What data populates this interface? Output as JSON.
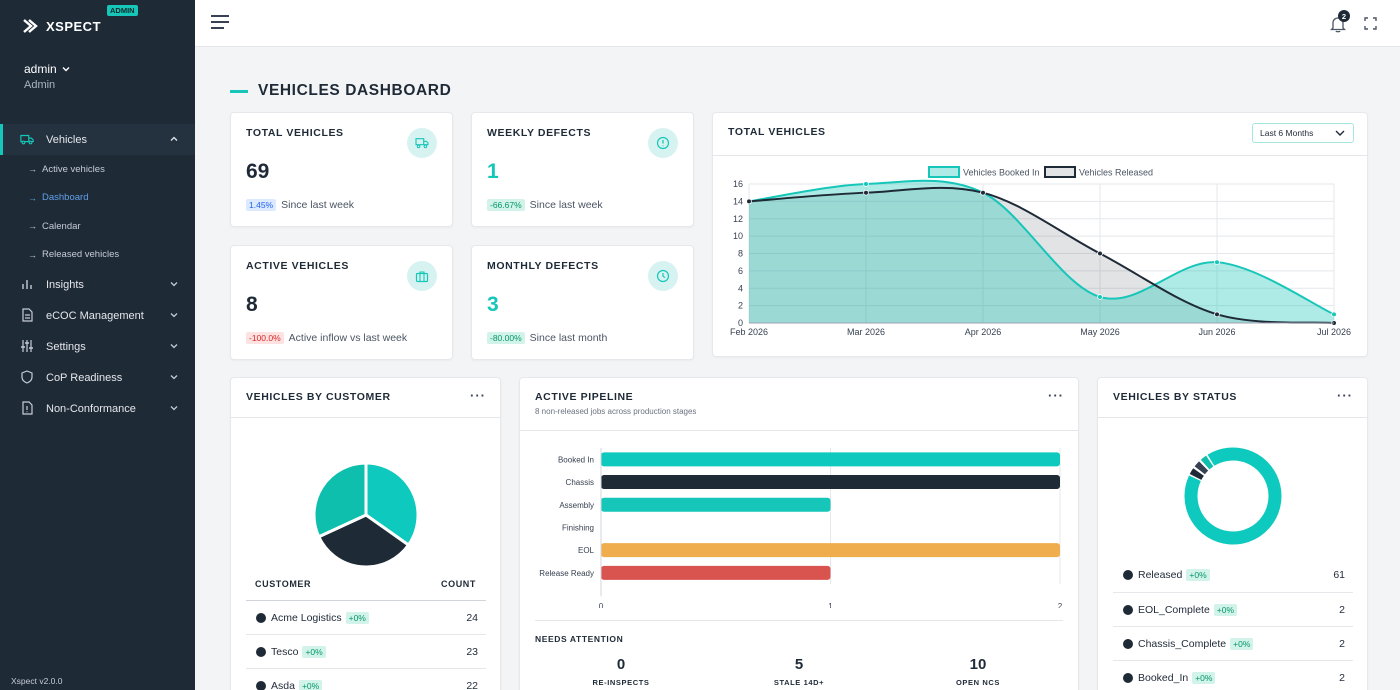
{
  "app": {
    "name": "XSPECT",
    "badge": "ADMIN",
    "version": "Xspect v2.0.0"
  },
  "user": {
    "name": "admin",
    "role": "Admin"
  },
  "sidebar": {
    "items": [
      {
        "label": "Vehicles",
        "icon": "truck-icon",
        "active": true
      },
      {
        "label": "Insights",
        "icon": "bar-chart-icon"
      },
      {
        "label": "eCOC Management",
        "icon": "document-icon"
      },
      {
        "label": "Settings",
        "icon": "sliders-icon"
      },
      {
        "label": "CoP Readiness",
        "icon": "shield-icon"
      },
      {
        "label": "Non-Conformance",
        "icon": "file-alert-icon"
      }
    ],
    "vehicles_sub": [
      {
        "label": "Active vehicles"
      },
      {
        "label": "Dashboard",
        "active": true
      },
      {
        "label": "Calendar"
      },
      {
        "label": "Released vehicles"
      }
    ]
  },
  "topbar": {
    "notification_count": "2"
  },
  "page": {
    "title": "VEHICLES DASHBOARD"
  },
  "colors": {
    "accent": "#16c6b8",
    "navy": "#1f2a37",
    "orange": "#f0ad4e",
    "red": "#d9534f"
  },
  "kpis": [
    {
      "title": "TOTAL VEHICLES",
      "value": "69",
      "delta": "1.45%",
      "delta_style": "blue",
      "note": "Since last week",
      "icon": "truck-icon"
    },
    {
      "title": "WEEKLY DEFECTS",
      "value": "1",
      "delta": "-66.67%",
      "delta_style": "green",
      "note": "Since last week",
      "icon": "alert-circle-icon"
    },
    {
      "title": "ACTIVE VEHICLES",
      "value": "8",
      "delta": "-100.0%",
      "delta_style": "red",
      "note": "Active inflow vs last week",
      "icon": "briefcase-icon"
    },
    {
      "title": "MONTHLY DEFECTS",
      "value": "3",
      "delta": "-80.00%",
      "delta_style": "green",
      "note": "Since last month",
      "icon": "clock-icon"
    }
  ],
  "total_chart": {
    "title": "TOTAL VEHICLES",
    "range_select": "Last 6 Months"
  },
  "customer_card": {
    "title": "VEHICLES BY CUSTOMER",
    "col_customer": "CUSTOMER",
    "col_count": "COUNT",
    "rows": [
      {
        "name": "Acme Logistics",
        "delta": "+0%",
        "count": "24"
      },
      {
        "name": "Tesco",
        "delta": "+0%",
        "count": "23"
      },
      {
        "name": "Asda",
        "delta": "+0%",
        "count": "22"
      }
    ]
  },
  "pipeline_card": {
    "title": "ACTIVE PIPELINE",
    "subtitle": "8 non-released jobs across production stages",
    "attention_label": "NEEDS ATTENTION",
    "attention": [
      {
        "value": "0",
        "label": "RE-INSPECTS"
      },
      {
        "value": "5",
        "label": "STALE 14D+"
      },
      {
        "value": "10",
        "label": "OPEN NCS"
      }
    ]
  },
  "status_card": {
    "title": "VEHICLES BY STATUS",
    "rows": [
      {
        "name": "Released",
        "delta": "+0%",
        "count": "61"
      },
      {
        "name": "EOL_Complete",
        "delta": "+0%",
        "count": "2"
      },
      {
        "name": "Chassis_Complete",
        "delta": "+0%",
        "count": "2"
      },
      {
        "name": "Booked_In",
        "delta": "+0%",
        "count": "2"
      }
    ]
  },
  "chart_data": [
    {
      "type": "area",
      "title": "",
      "x": [
        "Feb 2026",
        "Mar 2026",
        "Apr 2026",
        "May 2026",
        "Jun 2026",
        "Jul 2026"
      ],
      "ylim": [
        0,
        16
      ],
      "yticks": [
        0,
        2,
        4,
        6,
        8,
        10,
        12,
        14,
        16
      ],
      "grid": true,
      "legend": "top-center",
      "series": [
        {
          "name": "Vehicles Booked In",
          "values": [
            14,
            16,
            15,
            3,
            7,
            1
          ],
          "color": "#16c6b8"
        },
        {
          "name": "Vehicles Released",
          "values": [
            14,
            15,
            15,
            8,
            1,
            0
          ],
          "color": "#1f2a37"
        }
      ]
    },
    {
      "type": "pie",
      "title": "",
      "categories": [
        "Acme Logistics",
        "Tesco",
        "Asda"
      ],
      "values": [
        24,
        23,
        22
      ],
      "colors": [
        "#0ec9bd",
        "#1f2a37",
        "#0fbfad"
      ]
    },
    {
      "type": "bar",
      "orientation": "horizontal",
      "title": "",
      "categories": [
        "Booked In",
        "Chassis",
        "Assembly",
        "Finishing",
        "EOL",
        "Release Ready"
      ],
      "values": [
        2,
        2,
        1,
        0,
        2,
        1
      ],
      "colors": [
        "#0ec9bd",
        "#1f2a37",
        "#16c6b8",
        "#16c6b8",
        "#f0ad4e",
        "#d9534f"
      ],
      "xlim": [
        0,
        2
      ],
      "xticks": [
        0,
        1,
        2
      ]
    },
    {
      "type": "pie",
      "title": "",
      "donut": true,
      "categories": [
        "Released",
        "EOL_Complete",
        "Chassis_Complete",
        "Booked_In"
      ],
      "values": [
        61,
        2,
        2,
        2
      ],
      "colors": [
        "#0ec9bd",
        "#1f2a37",
        "#374151",
        "#0fbfad"
      ]
    }
  ]
}
